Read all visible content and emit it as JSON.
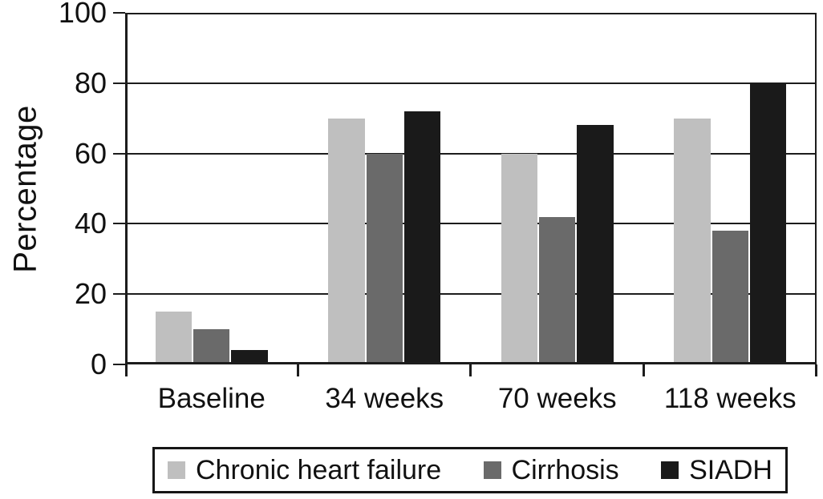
{
  "chart_data": {
    "type": "bar",
    "ylabel": "Percentage",
    "ylim": [
      0,
      100
    ],
    "yticks": [
      0,
      20,
      40,
      60,
      80,
      100
    ],
    "grid": true,
    "legend_position": "bottom",
    "categories": [
      "Baseline",
      "34 weeks",
      "70 weeks",
      "118 weeks"
    ],
    "series": [
      {
        "name": "Chronic heart failure",
        "color": "#bfbfbf",
        "values": [
          15,
          70,
          60,
          70
        ]
      },
      {
        "name": "Cirrhosis",
        "color": "#6a6a6a",
        "values": [
          10,
          60,
          42,
          38
        ]
      },
      {
        "name": "SIADH",
        "color": "#1a1a1a",
        "values": [
          4,
          72,
          68,
          80
        ]
      }
    ]
  },
  "colors": {
    "axis": "#1c1c1c",
    "grid": "#1c1c1c",
    "background": "#ffffff",
    "legend_border": "#161616"
  }
}
